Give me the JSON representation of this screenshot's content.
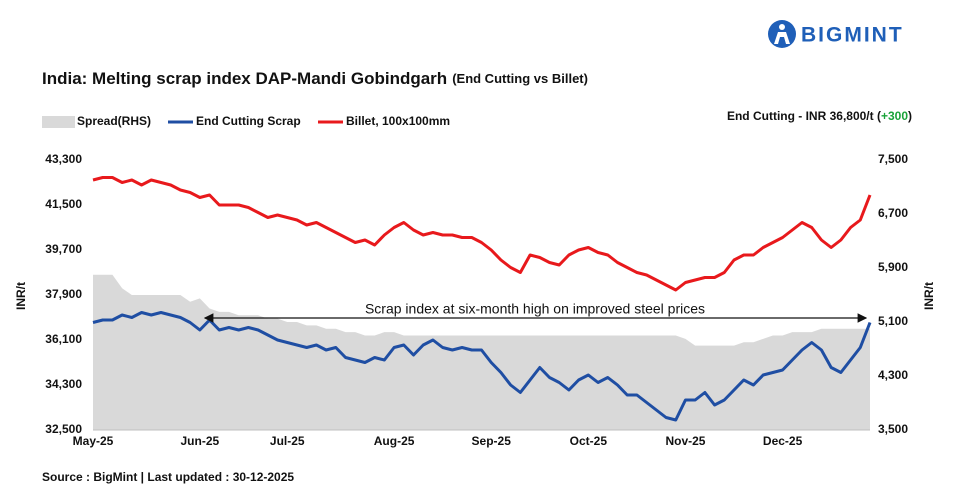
{
  "header": {
    "brand": "BIGMINT"
  },
  "chart_data": {
    "type": "line",
    "title": "India: Melting scrap index DAP-Mandi Gobindgarh",
    "subtitle": "(End Cutting vs Billet)",
    "note": "End Cutting - INR 36,800/t (",
    "note_change": "+300",
    "note_close": ")",
    "annotation": "Scrap index at six-month high on improved steel prices",
    "y_label": "INR/t",
    "y2_label": "INR/t",
    "source": "Source : BigMint | Last updated : 30-12-2025",
    "grid": false,
    "categories": [
      "May-25",
      null,
      null,
      null,
      null,
      null,
      null,
      null,
      null,
      null,
      null,
      "Jun-25",
      null,
      null,
      null,
      null,
      null,
      null,
      null,
      null,
      "Jul-25",
      null,
      null,
      null,
      null,
      null,
      null,
      null,
      null,
      null,
      null,
      "Aug-25",
      null,
      null,
      null,
      null,
      null,
      null,
      null,
      null,
      null,
      "Sep-25",
      null,
      null,
      null,
      null,
      null,
      null,
      null,
      null,
      null,
      "Oct-25",
      null,
      null,
      null,
      null,
      null,
      null,
      null,
      null,
      null,
      "Nov-25",
      null,
      null,
      null,
      null,
      null,
      null,
      null,
      null,
      null,
      "Dec-25",
      null,
      null,
      null,
      null,
      null,
      null,
      null,
      null,
      null
    ],
    "ylim": [
      32500,
      43300
    ],
    "yticks": [
      {
        "value": 32500,
        "label": "32,500"
      },
      {
        "value": 34300,
        "label": "34,300"
      },
      {
        "value": 36100,
        "label": "36,100"
      },
      {
        "value": 37900,
        "label": "37,900"
      },
      {
        "value": 39700,
        "label": "39,700"
      },
      {
        "value": 41500,
        "label": "41,500"
      },
      {
        "value": 43300,
        "label": "43,300"
      }
    ],
    "y2lim": [
      3500,
      7500
    ],
    "y2ticks": [
      {
        "value": 3500,
        "label": "3,500"
      },
      {
        "value": 4300,
        "label": "4,300"
      },
      {
        "value": 5100,
        "label": "5,100"
      },
      {
        "value": 5900,
        "label": "5,900"
      },
      {
        "value": 6700,
        "label": "6,700"
      },
      {
        "value": 7500,
        "label": "7,500"
      }
    ],
    "series": [
      {
        "name": "Spread(RHS)",
        "color": "#d9d9d9",
        "axis": "y2",
        "type": "area",
        "values": [
          5800,
          5800,
          5800,
          5600,
          5500,
          5500,
          5500,
          5500,
          5500,
          5500,
          5400,
          5450,
          5300,
          5250,
          5250,
          5200,
          5200,
          5200,
          5150,
          5150,
          5100,
          5100,
          5050,
          5050,
          5000,
          5000,
          4950,
          4950,
          4900,
          4900,
          4950,
          4950,
          4900,
          4900,
          4900,
          4900,
          4900,
          4900,
          4900,
          4900,
          4900,
          4900,
          4900,
          4900,
          4900,
          4900,
          4900,
          4900,
          4900,
          4900,
          4900,
          4900,
          4900,
          4900,
          4900,
          4900,
          4900,
          4900,
          4900,
          4900,
          4900,
          4850,
          4750,
          4750,
          4750,
          4750,
          4750,
          4800,
          4800,
          4850,
          4900,
          4900,
          4950,
          4950,
          4950,
          5000,
          5000,
          5000,
          5000,
          5000,
          5000
        ]
      },
      {
        "name": "End Cutting Scrap",
        "color": "#1f4ea3",
        "values": [
          36800,
          36900,
          36900,
          37100,
          37000,
          37200,
          37100,
          37200,
          37100,
          37000,
          36800,
          36500,
          36900,
          36500,
          36600,
          36500,
          36600,
          36500,
          36300,
          36100,
          36000,
          35900,
          35800,
          35900,
          35700,
          35800,
          35400,
          35300,
          35200,
          35400,
          35300,
          35800,
          35900,
          35500,
          35900,
          36100,
          35800,
          35700,
          35800,
          35700,
          35700,
          35200,
          34800,
          34300,
          34000,
          34500,
          35000,
          34600,
          34400,
          34100,
          34500,
          34700,
          34400,
          34600,
          34300,
          33900,
          33900,
          33600,
          33300,
          33000,
          32900,
          33700,
          33700,
          34000,
          33500,
          33700,
          34100,
          34500,
          34300,
          34700,
          34800,
          34900,
          35300,
          35700,
          36000,
          35700,
          35000,
          34800,
          35300,
          35800,
          36800
        ]
      },
      {
        "name": "Billet, 100x100mm",
        "color": "#e8191c",
        "values": [
          42500,
          42600,
          42600,
          42400,
          42500,
          42300,
          42500,
          42400,
          42300,
          42100,
          42000,
          41800,
          41900,
          41500,
          41500,
          41500,
          41400,
          41200,
          41000,
          41100,
          41000,
          40900,
          40700,
          40800,
          40600,
          40400,
          40200,
          40000,
          40100,
          39900,
          40300,
          40600,
          40800,
          40500,
          40300,
          40400,
          40300,
          40300,
          40200,
          40200,
          40000,
          39700,
          39300,
          39000,
          38800,
          39500,
          39400,
          39200,
          39100,
          39500,
          39700,
          39800,
          39600,
          39500,
          39200,
          39000,
          38800,
          38700,
          38500,
          38300,
          38100,
          38400,
          38500,
          38600,
          38600,
          38800,
          39300,
          39500,
          39500,
          39800,
          40000,
          40200,
          40500,
          40800,
          40600,
          40100,
          39800,
          40100,
          40600,
          40900,
          41900
        ]
      }
    ]
  }
}
